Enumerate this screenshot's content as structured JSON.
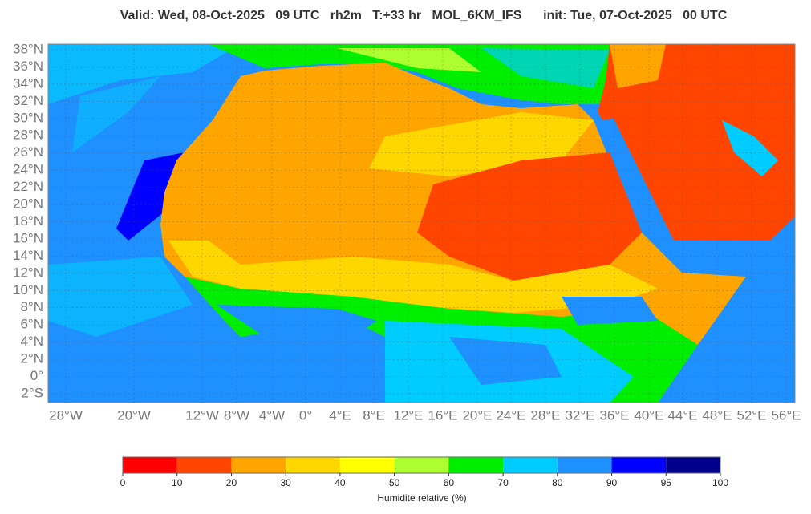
{
  "header": {
    "title": "Valid: Wed, 08-Oct-2025   09 UTC   rh2m   T:+33 hr   MOL_6KM_IFS      init: Tue, 07-Oct-2025   00 UTC"
  },
  "map": {
    "lat_labels": [
      "38°N",
      "36°N",
      "34°N",
      "32°N",
      "30°N",
      "28°N",
      "26°N",
      "24°N",
      "22°N",
      "20°N",
      "18°N",
      "16°N",
      "14°N",
      "12°N",
      "10°N",
      "8°N",
      "6°N",
      "4°N",
      "2°N",
      "0°",
      "2°S"
    ],
    "lon_labels": [
      "28°W",
      "20°W",
      "12°W",
      "8°W",
      "4°W",
      "0°",
      "4°E",
      "8°E",
      "12°E",
      "16°E",
      "20°E",
      "24°E",
      "28°E",
      "32°E",
      "36°E",
      "40°E",
      "44°E",
      "48°E",
      "52°E",
      "56°E"
    ]
  },
  "colorbar": {
    "bounds": [
      0,
      10,
      20,
      30,
      40,
      50,
      60,
      70,
      80,
      90,
      95,
      100
    ],
    "colors": [
      "#ff0000",
      "#ff4500",
      "#ffa500",
      "#ffd700",
      "#ffff00",
      "#adff2f",
      "#00ee00",
      "#00ccff",
      "#1e90ff",
      "#0000ff",
      "#00008b"
    ],
    "label": "Humidite relative (%)"
  }
}
